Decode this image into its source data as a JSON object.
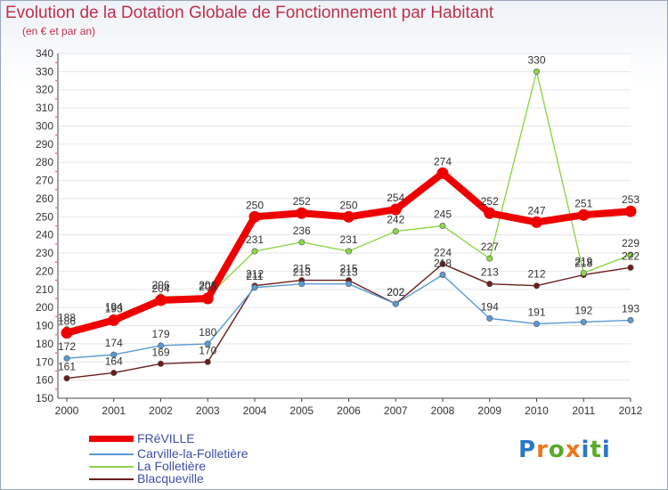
{
  "chart_data": {
    "type": "line",
    "title": "Evolution de la Dotation Globale de Fonctionnement par Habitant",
    "subtitle": "(en € et par an)",
    "xlabel": "",
    "ylabel": "",
    "ylim": [
      150,
      340
    ],
    "ytick_step": 10,
    "x": [
      "2000",
      "2001",
      "2002",
      "2003",
      "2004",
      "2005",
      "2006",
      "2007",
      "2008",
      "2009",
      "2010",
      "2011",
      "2012"
    ],
    "series": [
      {
        "name": "FRéVILLE",
        "color": "#ee0000",
        "values": [
          186,
          193,
          204,
          205,
          250,
          252,
          250,
          254,
          274,
          252,
          247,
          251,
          253
        ]
      },
      {
        "name": "Carville-la-Folletière",
        "color": "#5a9ad4",
        "values": [
          172,
          174,
          179,
          180,
          211,
          213,
          213,
          202,
          218,
          194,
          191,
          192,
          193
        ]
      },
      {
        "name": "La Folletière",
        "color": "#8ed64a",
        "values": [
          188,
          194,
          206,
          206,
          231,
          236,
          231,
          242,
          245,
          227,
          330,
          219,
          229
        ]
      },
      {
        "name": "Blacqueville",
        "color": "#6b1d1d",
        "values": [
          161,
          164,
          169,
          170,
          212,
          215,
          215,
          202,
          224,
          213,
          212,
          218,
          222
        ]
      }
    ]
  },
  "legend": {
    "s0": "FRéVILLE",
    "s1": "Carville-la-Folletière",
    "s2": "La Folletière",
    "s3": "Blacqueville"
  },
  "logo": {
    "text": "Proxiti"
  }
}
